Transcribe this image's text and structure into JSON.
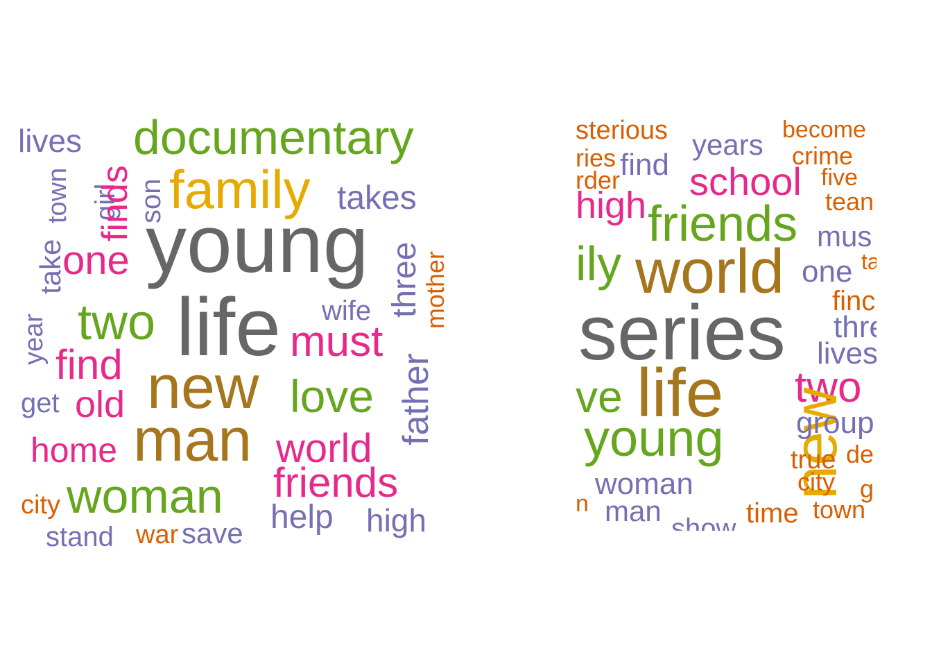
{
  "palette": {
    "gray": "#666666",
    "brown": "#a6761d",
    "gold": "#e6ab02",
    "green": "#66a61e",
    "pink": "#e7298a",
    "purple": "#7570b3",
    "orange": "#d95f02"
  },
  "clouds": [
    {
      "id": "cloud-left",
      "words": [
        {
          "text": "lives",
          "color": "purple"
        },
        {
          "text": "documentary",
          "color": "green"
        },
        {
          "text": "town",
          "color": "purple",
          "rotated": true
        },
        {
          "text": "girl",
          "color": "purple",
          "rotated": true
        },
        {
          "text": "finds",
          "color": "pink",
          "rotated": true
        },
        {
          "text": "son",
          "color": "purple",
          "rotated": true
        },
        {
          "text": "family",
          "color": "gold"
        },
        {
          "text": "takes",
          "color": "purple"
        },
        {
          "text": "take",
          "color": "purple",
          "rotated": true
        },
        {
          "text": "one",
          "color": "pink"
        },
        {
          "text": "young",
          "color": "gray"
        },
        {
          "text": "three",
          "color": "purple",
          "rotated": true
        },
        {
          "text": "mother",
          "color": "orange",
          "rotated": true
        },
        {
          "text": "year",
          "color": "purple",
          "rotated": true
        },
        {
          "text": "two",
          "color": "green"
        },
        {
          "text": "life",
          "color": "gray"
        },
        {
          "text": "wife",
          "color": "purple"
        },
        {
          "text": "must",
          "color": "pink"
        },
        {
          "text": "find",
          "color": "pink"
        },
        {
          "text": "father",
          "color": "purple",
          "rotated": true
        },
        {
          "text": "new",
          "color": "brown"
        },
        {
          "text": "love",
          "color": "green"
        },
        {
          "text": "get",
          "color": "purple"
        },
        {
          "text": "old",
          "color": "pink"
        },
        {
          "text": "home",
          "color": "pink"
        },
        {
          "text": "man",
          "color": "brown"
        },
        {
          "text": "world",
          "color": "pink"
        },
        {
          "text": "friends",
          "color": "pink"
        },
        {
          "text": "city",
          "color": "orange"
        },
        {
          "text": "woman",
          "color": "green"
        },
        {
          "text": "help",
          "color": "purple"
        },
        {
          "text": "high",
          "color": "purple"
        },
        {
          "text": "stand",
          "color": "purple"
        },
        {
          "text": "war",
          "color": "orange"
        },
        {
          "text": "save",
          "color": "purple"
        }
      ]
    },
    {
      "id": "cloud-right",
      "words": [
        {
          "text": "sterious",
          "color": "orange"
        },
        {
          "text": "become",
          "color": "orange"
        },
        {
          "text": "years",
          "color": "purple"
        },
        {
          "text": "ries",
          "color": "orange"
        },
        {
          "text": "find",
          "color": "purple"
        },
        {
          "text": "crime",
          "color": "orange"
        },
        {
          "text": "rder",
          "color": "orange"
        },
        {
          "text": "school",
          "color": "pink"
        },
        {
          "text": "five",
          "color": "orange"
        },
        {
          "text": "high",
          "color": "pink"
        },
        {
          "text": "tean",
          "color": "orange"
        },
        {
          "text": "friends",
          "color": "green"
        },
        {
          "text": "mus",
          "color": "purple"
        },
        {
          "text": "ily",
          "color": "green"
        },
        {
          "text": "world",
          "color": "brown"
        },
        {
          "text": "one",
          "color": "purple"
        },
        {
          "text": "ta",
          "color": "orange"
        },
        {
          "text": "finc",
          "color": "orange"
        },
        {
          "text": "series",
          "color": "gray"
        },
        {
          "text": "thre",
          "color": "purple"
        },
        {
          "text": "lives",
          "color": "purple"
        },
        {
          "text": "ve",
          "color": "green"
        },
        {
          "text": "life",
          "color": "brown"
        },
        {
          "text": "two",
          "color": "pink"
        },
        {
          "text": "new",
          "color": "gold",
          "rotated": true
        },
        {
          "text": "young",
          "color": "green"
        },
        {
          "text": "group",
          "color": "purple"
        },
        {
          "text": "true",
          "color": "orange"
        },
        {
          "text": "de",
          "color": "orange"
        },
        {
          "text": "woman",
          "color": "purple"
        },
        {
          "text": "city",
          "color": "orange"
        },
        {
          "text": "g",
          "color": "orange"
        },
        {
          "text": "n",
          "color": "orange"
        },
        {
          "text": "man",
          "color": "purple"
        },
        {
          "text": "time",
          "color": "orange"
        },
        {
          "text": "town",
          "color": "orange"
        },
        {
          "text": "show",
          "color": "purple"
        }
      ]
    }
  ]
}
